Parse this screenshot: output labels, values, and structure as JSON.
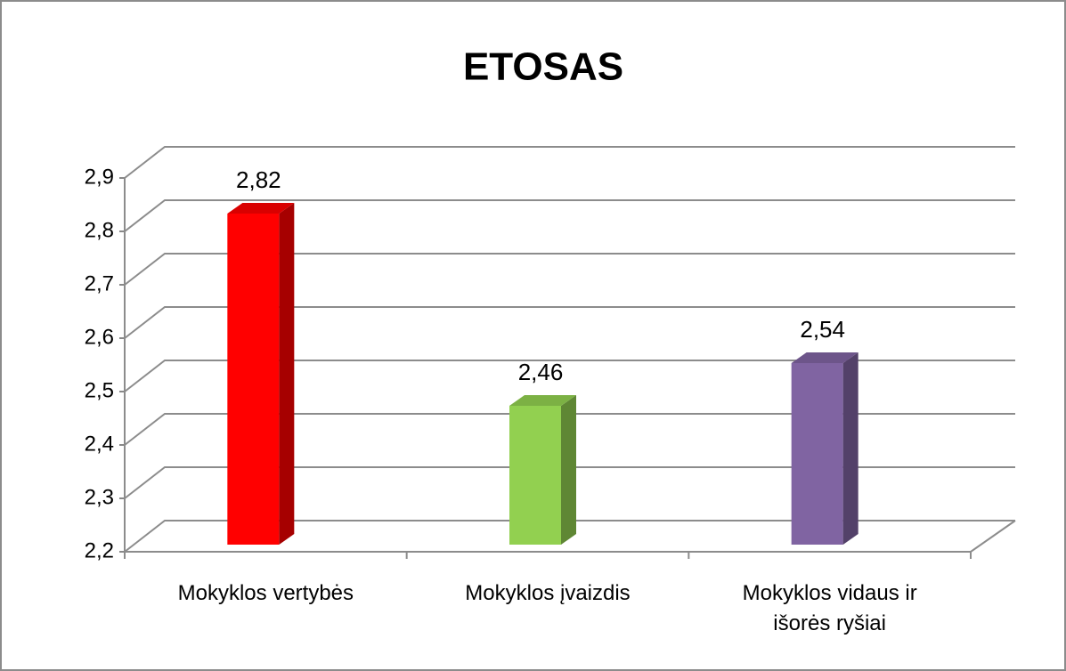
{
  "chart_data": {
    "type": "bar3d",
    "title": "ETOSAS",
    "categories": [
      "Mokyklos vertybės",
      "Mokyklos įvaizdis",
      "Mokyklos vidaus ir išorės ryšiai"
    ],
    "values": [
      2.82,
      2.46,
      2.54
    ],
    "value_labels": [
      "2,82",
      "2,46",
      "2,54"
    ],
    "colors": [
      "#ff0000",
      "#92d050",
      "#8064a2"
    ],
    "ylim": [
      2.2,
      2.9
    ],
    "yticks": [
      {
        "value": 2.2,
        "label": "2,2"
      },
      {
        "value": 2.3,
        "label": "2,3"
      },
      {
        "value": 2.4,
        "label": "2,4"
      },
      {
        "value": 2.5,
        "label": "2,5"
      },
      {
        "value": 2.6,
        "label": "2,6"
      },
      {
        "value": 2.7,
        "label": "2,7"
      },
      {
        "value": 2.8,
        "label": "2,8"
      },
      {
        "value": 2.9,
        "label": "2,9"
      }
    ],
    "grid": true
  }
}
